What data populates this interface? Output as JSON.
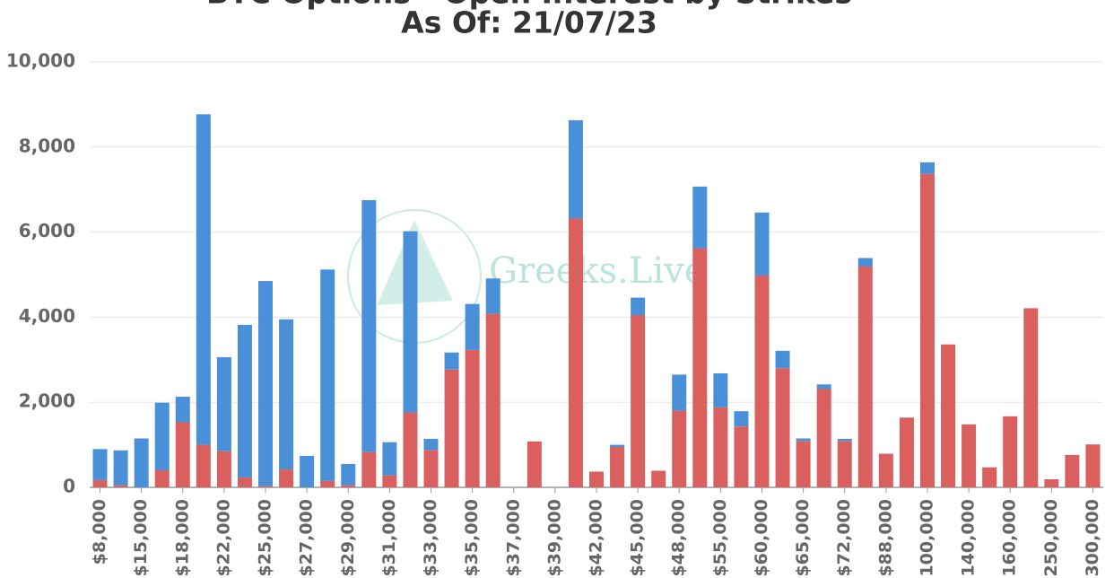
{
  "chart_data": {
    "type": "bar",
    "stacked": true,
    "title": "BTC Options - Open Interest by Strikes",
    "subtitle": "As Of: 21/07/23",
    "watermark": "Greeks.Live",
    "categories": [
      "$8,000",
      null,
      "$15,000",
      null,
      "$18,000",
      null,
      "$22,000",
      null,
      "$25,000",
      null,
      "$27,000",
      null,
      "$29,000",
      null,
      "$31,000",
      null,
      "$33,000",
      null,
      "$35,000",
      null,
      "$37,000",
      null,
      "$39,000",
      null,
      "$42,000",
      null,
      "$45,000",
      null,
      "$48,000",
      null,
      "$55,000",
      null,
      "$60,000",
      null,
      "$65,000",
      null,
      "$72,000",
      null,
      "$88,000",
      null,
      "$100,000",
      null,
      "$140,000",
      null,
      "$160,000",
      null,
      "$250,000",
      null,
      "$300,000"
    ],
    "series": [
      {
        "color": "#d9605f",
        "values": [
          170,
          50,
          0,
          400,
          1530,
          1000,
          850,
          230,
          30,
          420,
          0,
          150,
          50,
          830,
          280,
          1760,
          880,
          2770,
          3230,
          4080,
          0,
          1080,
          0,
          6320,
          370,
          950,
          4050,
          390,
          1800,
          5620,
          1880,
          1430,
          4980,
          2800,
          1090,
          2310,
          1090,
          5190,
          790,
          1640,
          7370,
          3360,
          1480,
          470,
          1670,
          4210,
          190,
          760,
          1010
        ]
      },
      {
        "color": "#4a90d9",
        "values": [
          730,
          820,
          1150,
          1590,
          600,
          7770,
          2210,
          3590,
          4820,
          3530,
          740,
          4970,
          500,
          5920,
          780,
          4260,
          260,
          400,
          1080,
          830,
          0,
          0,
          0,
          2310,
          0,
          50,
          410,
          0,
          850,
          1450,
          800,
          360,
          1480,
          410,
          60,
          110,
          50,
          200,
          0,
          0,
          270,
          0,
          0,
          0,
          0,
          0,
          0,
          0,
          0
        ]
      }
    ],
    "ylim": [
      0,
      10000
    ],
    "yticks": [
      0,
      {
        "value": 2000,
        "label": "2,000"
      },
      {
        "value": 4000,
        "label": "4,000"
      },
      {
        "value": 6000,
        "label": "6,000"
      },
      {
        "value": 8000,
        "label": "8,000"
      },
      {
        "value": 10000,
        "label": "10,000"
      }
    ],
    "grid": true
  }
}
